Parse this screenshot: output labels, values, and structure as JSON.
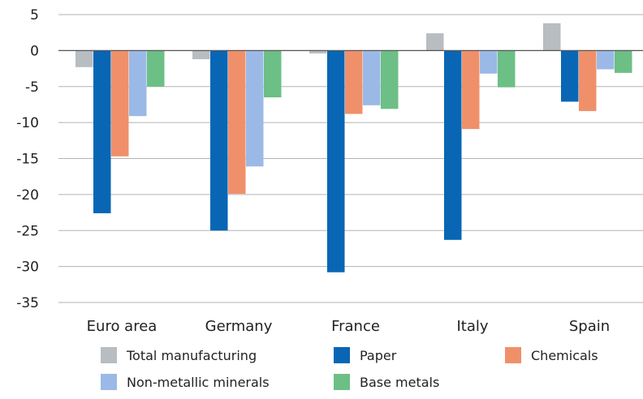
{
  "chart_data": {
    "type": "bar",
    "title": "",
    "xlabel": "",
    "ylabel": "",
    "ylim": [
      -35,
      5
    ],
    "yticks": [
      5,
      0,
      -5,
      -10,
      -15,
      -20,
      -25,
      -30,
      -35
    ],
    "grid": true,
    "legend_position": "bottom",
    "categories": [
      "Euro area",
      "Germany",
      "France",
      "Italy",
      "Spain"
    ],
    "series": [
      {
        "name": "Total manufacturing",
        "color": "#b7bdc0",
        "values": [
          -2.3,
          -1.2,
          -0.4,
          2.4,
          3.8
        ]
      },
      {
        "name": "Paper",
        "color": "#0866b5",
        "values": [
          -22.6,
          -25.0,
          -30.8,
          -26.3,
          -7.1
        ]
      },
      {
        "name": "Chemicals",
        "color": "#f0906a",
        "values": [
          -14.7,
          -19.9,
          -8.8,
          -10.9,
          -8.4
        ]
      },
      {
        "name": "Non-metallic minerals",
        "color": "#9bb9e6",
        "values": [
          -9.1,
          -16.1,
          -7.6,
          -3.2,
          -2.6
        ]
      },
      {
        "name": "Base metals",
        "color": "#6cbf85",
        "values": [
          -5.0,
          -6.5,
          -8.1,
          -5.1,
          -3.1
        ]
      }
    ]
  }
}
